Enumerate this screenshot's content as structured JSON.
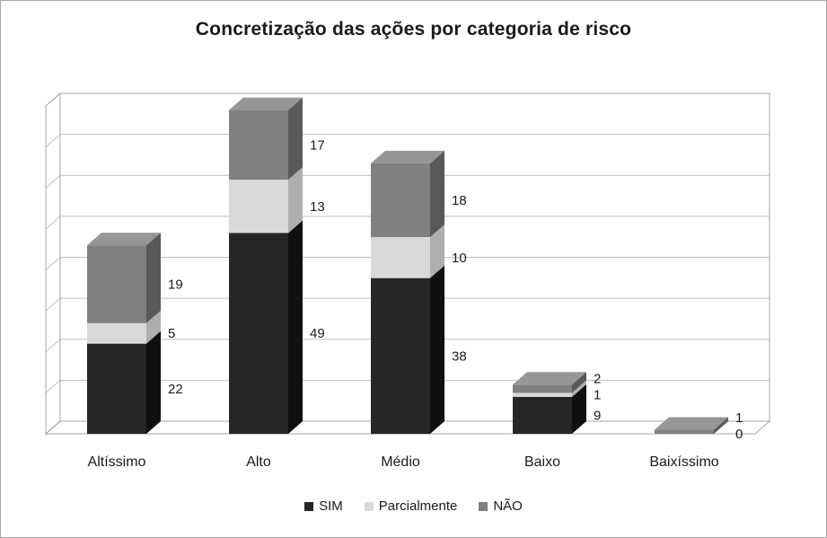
{
  "chart_data": {
    "type": "bar",
    "stacked": true,
    "projection": "3d",
    "title": "Concretização das ações por categoria de risco",
    "categories": [
      "Altíssimo",
      "Alto",
      "Médio",
      "Baixo",
      "Baixíssimo"
    ],
    "series": [
      {
        "name": "SIM",
        "values": [
          22,
          49,
          38,
          9,
          0
        ],
        "color": "#262626",
        "color_side": "#101010",
        "color_top": "#3d3d3d"
      },
      {
        "name": "Parcialmente",
        "values": [
          5,
          13,
          10,
          1,
          0
        ],
        "color": "#d9d9d9",
        "color_side": "#aeaeae",
        "color_top": "#e6e6e6"
      },
      {
        "name": "NÃO",
        "values": [
          19,
          17,
          18,
          2,
          1
        ],
        "color": "#808080",
        "color_side": "#595959",
        "color_top": "#969696"
      }
    ],
    "ylim": [
      0,
      80
    ],
    "grid_step": 10,
    "gridlines": true,
    "legend_position": "bottom",
    "data_labels": true
  },
  "colors": {
    "frame_border": "#a6a6a6",
    "grid": "#bfbfbf",
    "axis": "#a6a6a6",
    "wall": "#ffffff",
    "text": "#1a1a1a"
  }
}
